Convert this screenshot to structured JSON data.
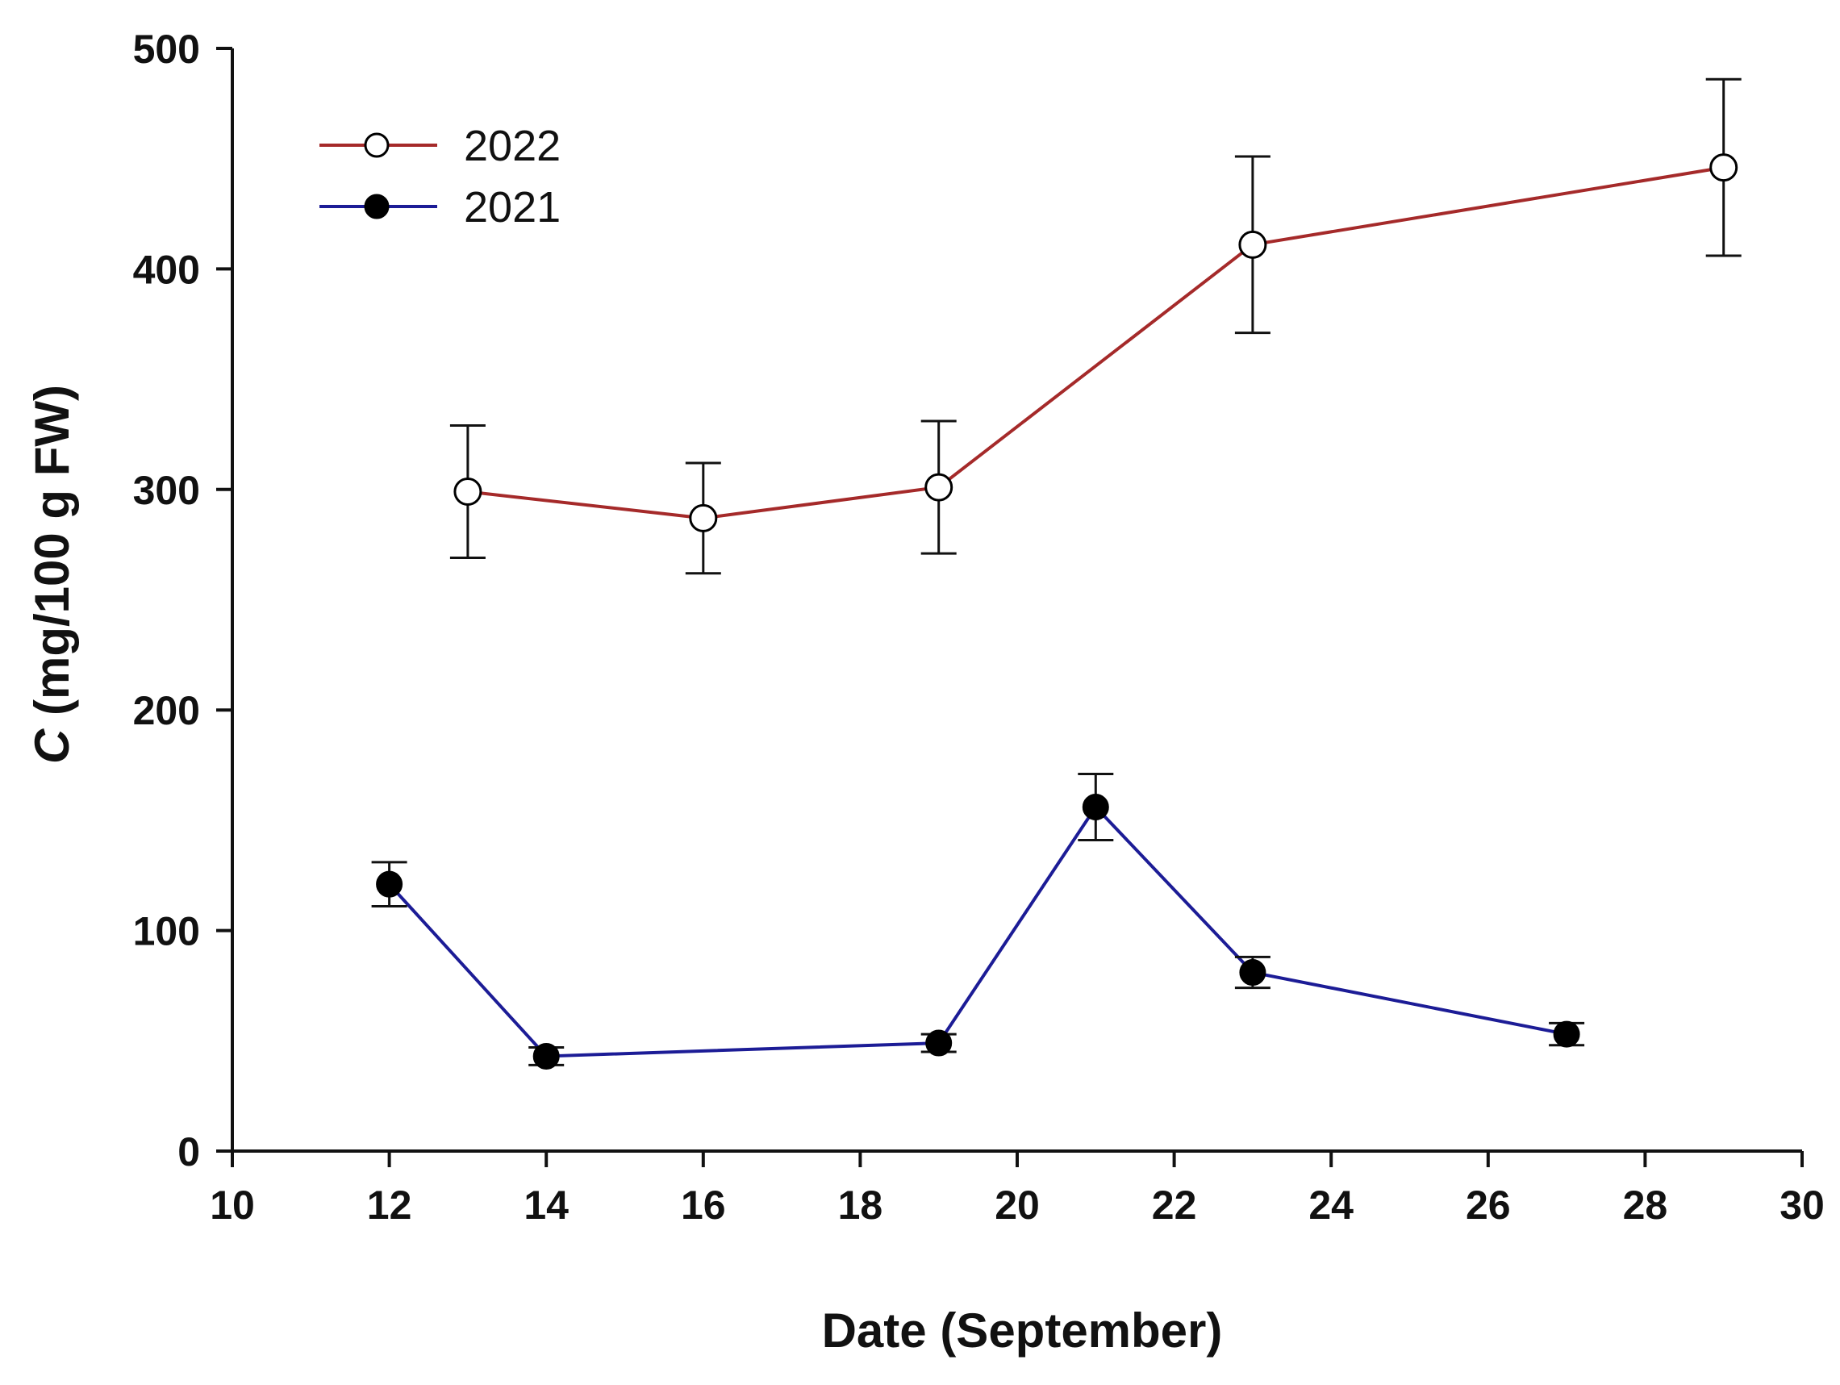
{
  "chart_data": {
    "type": "line",
    "title": "",
    "xlabel": "Date (September)",
    "ylabel_italic": "C",
    "ylabel_rest": " (mg/100 g FW)",
    "xlim": [
      10,
      30
    ],
    "ylim": [
      0,
      500
    ],
    "xticks": [
      "10",
      "12",
      "14",
      "16",
      "18",
      "20",
      "22",
      "24",
      "26",
      "28",
      "30"
    ],
    "yticks": [
      "0",
      "100",
      "200",
      "300",
      "400",
      "500"
    ],
    "grid": false,
    "legend_position": "top-left",
    "series": [
      {
        "name": "2022",
        "color": "#A52A2A",
        "marker": "open-circle",
        "x": [
          13,
          16,
          19,
          23,
          29
        ],
        "y": [
          299,
          287,
          301,
          411,
          446
        ],
        "error": [
          30,
          25,
          30,
          40,
          40
        ]
      },
      {
        "name": "2021",
        "color": "#1C1C96",
        "marker": "filled-circle",
        "x": [
          12,
          14,
          19,
          21,
          23,
          27
        ],
        "y": [
          121,
          43,
          49,
          156,
          81,
          53
        ],
        "error": [
          10,
          4,
          4,
          15,
          7,
          5
        ]
      }
    ]
  }
}
